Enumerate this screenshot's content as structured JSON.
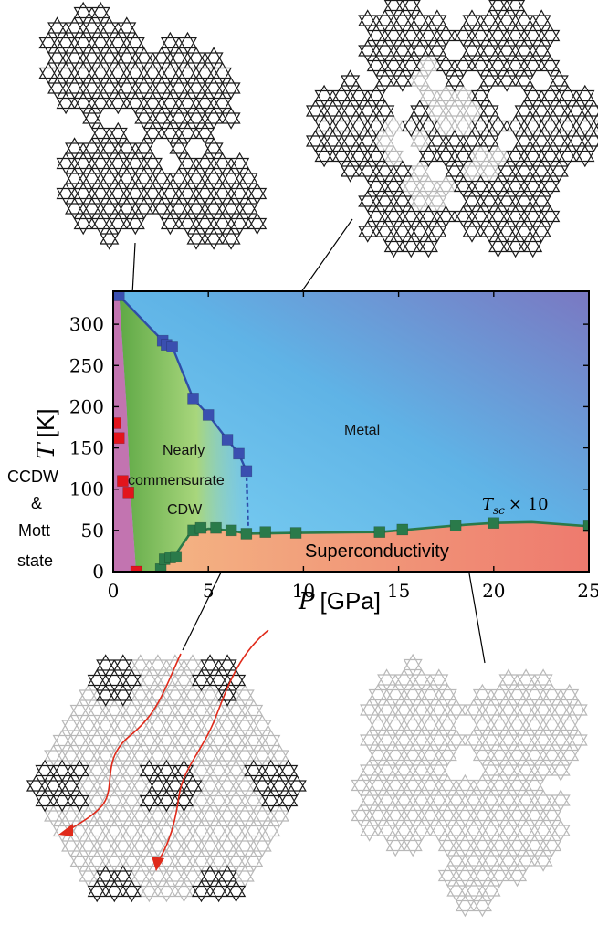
{
  "chart_data": {
    "type": "scatter",
    "xlabel_var": "P",
    "xlabel_unit": "[GPa]",
    "ylabel_var": "T",
    "ylabel_unit": "[K]",
    "xlim": [
      0,
      25
    ],
    "ylim": [
      0,
      340
    ],
    "x_ticks": [
      0,
      5,
      10,
      15,
      20,
      25
    ],
    "y_ticks": [
      0,
      50,
      100,
      150,
      200,
      250,
      300
    ],
    "grid": false,
    "series": [
      {
        "color": "#3a4fb0",
        "points": [
          [
            0.3,
            335
          ],
          [
            2.6,
            280
          ],
          [
            2.8,
            275
          ],
          [
            3.1,
            273
          ],
          [
            4.2,
            210
          ],
          [
            5.0,
            190
          ],
          [
            6.0,
            160
          ],
          [
            6.6,
            143
          ],
          [
            7.0,
            122
          ]
        ]
      },
      {
        "color": "#2a7a4a",
        "points": [
          [
            2.5,
            3
          ],
          [
            2.7,
            15
          ],
          [
            3.0,
            17
          ],
          [
            3.3,
            18
          ],
          [
            4.2,
            50
          ],
          [
            4.6,
            53
          ],
          [
            5.4,
            53
          ],
          [
            6.2,
            50
          ],
          [
            7.0,
            46
          ],
          [
            8.0,
            48
          ],
          [
            9.6,
            47
          ],
          [
            14.0,
            48
          ],
          [
            15.2,
            51
          ],
          [
            18.0,
            56
          ],
          [
            20.0,
            59
          ],
          [
            25.0,
            55
          ]
        ]
      },
      {
        "color": "#e2141c",
        "points": [
          [
            0.1,
            180
          ],
          [
            0.3,
            162
          ],
          [
            0.5,
            110
          ],
          [
            0.8,
            96
          ],
          [
            1.2,
            0
          ]
        ]
      }
    ],
    "annotations": {
      "metal": "Metal",
      "nc_line1": "Nearly",
      "nc_line2": "commensurate",
      "nc_line3": "CDW",
      "sc": "Superconductivity",
      "tsc": "T",
      "tsc_sub": "sc",
      "tsc_mult": "× 10"
    }
  },
  "side_labels": {
    "line1": "CCDW",
    "line2": "&",
    "line3": "Mott",
    "line4": "state"
  },
  "lattice_panels": [
    {
      "name": "ccdw-lattice",
      "style": "all-dark"
    },
    {
      "name": "nccdw-lattice",
      "style": "dark-with-light-patches"
    },
    {
      "name": "sc-domain-lattice",
      "style": "light-with-dark-clusters"
    },
    {
      "name": "metal-lattice",
      "style": "all-light"
    }
  ],
  "colors": {
    "star_dark": "#1a1a1a",
    "star_light": "#b8b8b8",
    "arrow": "#e02a1a",
    "metal_phase": "#6fc1ea",
    "ncdw_phase": "#6fb85a",
    "ccdw_phase": "#c274b0",
    "sc_phase": "#f19a78"
  }
}
